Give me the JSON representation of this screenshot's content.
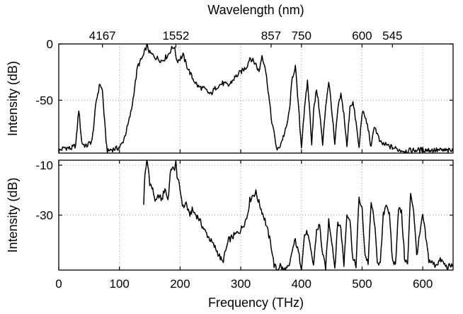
{
  "chart_data": [
    {
      "type": "line",
      "panel": "top",
      "title": "",
      "top_axis_title": "Wavelength (nm)",
      "top_tick_labels": [
        "4167",
        "1552",
        "857",
        "750",
        "600",
        "545"
      ],
      "top_tick_frequencies_THz": [
        72,
        193,
        350,
        400,
        500,
        550
      ],
      "xlabel": "",
      "ylabel": "Intensity (dB)",
      "xlim": [
        0,
        650
      ],
      "ylim": [
        -97,
        0
      ],
      "yticks": [
        0,
        -50
      ],
      "ytick_labels": [
        "0",
        "-50"
      ],
      "grid": true,
      "series": [
        {
          "name": "top-spectrum",
          "x": [
            0,
            10,
            20,
            28,
            33,
            38,
            45,
            55,
            62,
            68,
            72,
            77,
            80,
            85,
            95,
            100,
            105,
            110,
            115,
            120,
            130,
            140,
            145,
            150,
            160,
            170,
            180,
            185,
            190,
            195,
            200,
            205,
            210,
            220,
            230,
            240,
            250,
            260,
            270,
            280,
            290,
            300,
            310,
            315,
            320,
            325,
            330,
            335,
            340,
            345,
            350,
            355,
            360,
            365,
            375,
            380,
            385,
            390,
            395,
            400,
            403,
            410,
            413,
            417,
            420,
            425,
            430,
            435,
            440,
            445,
            450,
            455,
            460,
            465,
            470,
            475,
            480,
            485,
            490,
            495,
            500,
            505,
            510,
            515,
            520,
            525,
            530,
            540,
            550,
            560,
            570,
            600,
            650
          ],
          "y": [
            -95,
            -92,
            -93,
            -90,
            -58,
            -88,
            -91,
            -86,
            -50,
            -35,
            -42,
            -80,
            -96,
            -94,
            -93,
            -92,
            -88,
            -80,
            -70,
            -58,
            -20,
            -10,
            -1,
            -8,
            -12,
            -15,
            -10,
            -5,
            -2,
            -15,
            -13,
            -10,
            -18,
            -30,
            -38,
            -40,
            -45,
            -38,
            -35,
            -37,
            -30,
            -25,
            -20,
            -12,
            -15,
            -18,
            -25,
            -10,
            -20,
            -40,
            -65,
            -80,
            -95,
            -90,
            -75,
            -60,
            -30,
            -20,
            -55,
            -92,
            -70,
            -33,
            -55,
            -88,
            -60,
            -40,
            -60,
            -90,
            -55,
            -33,
            -58,
            -90,
            -58,
            -45,
            -62,
            -92,
            -55,
            -52,
            -70,
            -93,
            -60,
            -65,
            -75,
            -93,
            -72,
            -80,
            -88,
            -90,
            -92,
            -94,
            -95,
            -94,
            -95
          ]
        }
      ]
    },
    {
      "type": "line",
      "panel": "bottom",
      "title": "",
      "xlabel": "Frequency (THz)",
      "ylabel": "Intensity (dB)",
      "xlim": [
        0,
        650
      ],
      "ylim": [
        -52,
        -8
      ],
      "xticks": [
        0,
        100,
        200,
        300,
        400,
        500,
        600
      ],
      "xtick_labels": [
        "0",
        "100",
        "200",
        "300",
        "400",
        "500",
        "600"
      ],
      "yticks": [
        -10,
        -30
      ],
      "ytick_labels": [
        "-10",
        "-30"
      ],
      "grid": true,
      "series": [
        {
          "name": "bottom-spectrum",
          "x": [
            140,
            142,
            145,
            148,
            150,
            155,
            160,
            165,
            170,
            175,
            180,
            185,
            190,
            193,
            195,
            200,
            205,
            210,
            215,
            220,
            230,
            240,
            245,
            250,
            260,
            270,
            280,
            290,
            300,
            310,
            315,
            320,
            325,
            330,
            340,
            350,
            355,
            360,
            365,
            370,
            380,
            385,
            390,
            395,
            400,
            405,
            410,
            415,
            420,
            425,
            430,
            435,
            440,
            445,
            450,
            455,
            460,
            465,
            470,
            475,
            480,
            485,
            490,
            495,
            500,
            505,
            510,
            515,
            520,
            525,
            530,
            535,
            540,
            545,
            550,
            555,
            560,
            565,
            570,
            575,
            580,
            585,
            590,
            595,
            600,
            610,
            620,
            630,
            640,
            650
          ],
          "y": [
            -25,
            -14,
            -8,
            -12,
            -17,
            -20,
            -25,
            -22,
            -24,
            -19,
            -24,
            -11,
            -12,
            -9,
            -14,
            -20,
            -27,
            -25,
            -30,
            -28,
            -31,
            -36,
            -38,
            -40,
            -44,
            -49,
            -40,
            -38,
            -36,
            -31,
            -24,
            -22,
            -21,
            -25,
            -32,
            -42,
            -50,
            -52,
            -50,
            -52,
            -51,
            -44,
            -40,
            -45,
            -51,
            -38,
            -37,
            -44,
            -50,
            -36,
            -34,
            -46,
            -51,
            -32,
            -40,
            -51,
            -33,
            -35,
            -50,
            -29,
            -32,
            -48,
            -50,
            -23,
            -28,
            -46,
            -49,
            -25,
            -32,
            -48,
            -50,
            -30,
            -25,
            -30,
            -48,
            -50,
            -27,
            -29,
            -47,
            -50,
            -21,
            -28,
            -46,
            -38,
            -30,
            -48,
            -50,
            -48,
            -51,
            -50
          ]
        }
      ]
    }
  ]
}
